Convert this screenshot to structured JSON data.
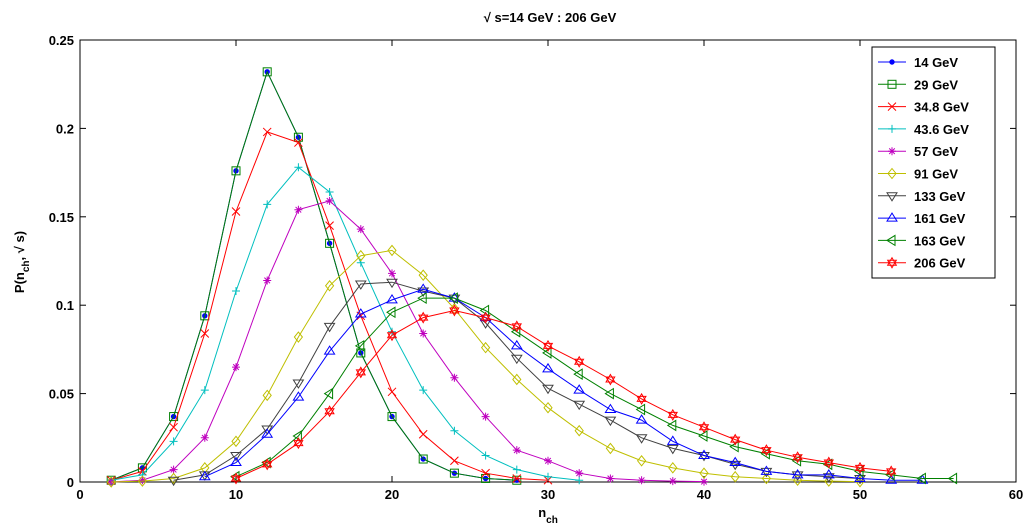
{
  "chart_data": {
    "type": "line",
    "title": "√ s=14 GeV : 206 GeV",
    "xlabel_main": "n",
    "xlabel_sub": "ch",
    "ylabel_main": "P(n",
    "ylabel_sub": "ch",
    "ylabel_rest": ", √ s)",
    "xlim": [
      0,
      60
    ],
    "ylim": [
      0,
      0.25
    ],
    "xticks": [
      0,
      10,
      20,
      30,
      40,
      50,
      60
    ],
    "yticks": [
      0,
      0.05,
      0.1,
      0.15,
      0.2,
      0.25
    ],
    "xtick_labels": [
      "0",
      "10",
      "20",
      "30",
      "40",
      "50",
      "60"
    ],
    "ytick_labels": [
      "0",
      "0.05",
      "0.1",
      "0.15",
      "0.2",
      "0.25"
    ],
    "grid": false,
    "legend_position": "top-right",
    "series": [
      {
        "name": "14 GeV",
        "color": "#0000ff",
        "marker": "dot",
        "x": [
          2,
          4,
          6,
          8,
          10,
          12,
          14,
          16,
          18,
          20,
          22,
          24,
          26,
          28
        ],
        "y": [
          0.001,
          0.008,
          0.037,
          0.094,
          0.176,
          0.232,
          0.195,
          0.135,
          0.073,
          0.037,
          0.013,
          0.005,
          0.002,
          0.001
        ]
      },
      {
        "name": "29 GeV",
        "color": "#008000",
        "marker": "square",
        "x": [
          2,
          4,
          6,
          8,
          10,
          12,
          14,
          16,
          18,
          20,
          22,
          24,
          26,
          28
        ],
        "y": [
          0.001,
          0.008,
          0.037,
          0.094,
          0.176,
          0.232,
          0.195,
          0.135,
          0.073,
          0.037,
          0.013,
          0.005,
          0.002,
          0.001
        ]
      },
      {
        "name": "34.8 GeV",
        "color": "#ff0000",
        "marker": "x",
        "x": [
          2,
          4,
          6,
          8,
          10,
          12,
          14,
          16,
          18,
          20,
          22,
          24,
          26,
          28,
          30
        ],
        "y": [
          0.001,
          0.006,
          0.031,
          0.084,
          0.153,
          0.198,
          0.192,
          0.145,
          0.094,
          0.051,
          0.027,
          0.012,
          0.005,
          0.002,
          0.001
        ]
      },
      {
        "name": "43.6 GeV",
        "color": "#00bfbf",
        "marker": "plus",
        "x": [
          2,
          4,
          6,
          8,
          10,
          12,
          14,
          16,
          18,
          20,
          22,
          24,
          26,
          28,
          30,
          32
        ],
        "y": [
          0.001,
          0.004,
          0.023,
          0.052,
          0.108,
          0.157,
          0.178,
          0.164,
          0.124,
          0.085,
          0.052,
          0.029,
          0.015,
          0.007,
          0.003,
          0.001
        ]
      },
      {
        "name": "57 GeV",
        "color": "#bf00bf",
        "marker": "star",
        "x": [
          2,
          4,
          6,
          8,
          10,
          12,
          14,
          16,
          18,
          20,
          22,
          24,
          26,
          28,
          30,
          32,
          34,
          36,
          38,
          40
        ],
        "y": [
          0.0,
          0.001,
          0.007,
          0.025,
          0.065,
          0.114,
          0.154,
          0.159,
          0.143,
          0.118,
          0.084,
          0.059,
          0.037,
          0.018,
          0.012,
          0.005,
          0.002,
          0.001,
          0.0005,
          0.0002
        ]
      },
      {
        "name": "91 GeV",
        "color": "#bfbf00",
        "marker": "diamond",
        "x": [
          2,
          4,
          6,
          8,
          10,
          12,
          14,
          16,
          18,
          20,
          22,
          24,
          26,
          28,
          30,
          32,
          34,
          36,
          38,
          40,
          42,
          44,
          46,
          48,
          50
        ],
        "y": [
          0.0,
          0.0005,
          0.002,
          0.008,
          0.023,
          0.049,
          0.082,
          0.111,
          0.128,
          0.131,
          0.117,
          0.098,
          0.076,
          0.058,
          0.042,
          0.029,
          0.019,
          0.012,
          0.008,
          0.005,
          0.003,
          0.002,
          0.001,
          0.0005,
          0.0002
        ]
      },
      {
        "name": "133 GeV",
        "color": "#404040",
        "marker": "triangle-down",
        "x": [
          6,
          8,
          10,
          12,
          14,
          16,
          18,
          20,
          22,
          24,
          26,
          28,
          30,
          32,
          34,
          36,
          38,
          40,
          42,
          44,
          46,
          48,
          50
        ],
        "y": [
          0.001,
          0.004,
          0.015,
          0.03,
          0.056,
          0.088,
          0.112,
          0.113,
          0.108,
          0.104,
          0.09,
          0.07,
          0.053,
          0.044,
          0.035,
          0.025,
          0.019,
          0.015,
          0.01,
          0.006,
          0.004,
          0.003,
          0.002
        ]
      },
      {
        "name": "161 GeV",
        "color": "#0000ff",
        "marker": "triangle-up",
        "x": [
          8,
          10,
          12,
          14,
          16,
          18,
          20,
          22,
          24,
          26,
          28,
          30,
          32,
          34,
          36,
          38,
          40,
          42,
          44,
          46,
          48,
          50,
          52,
          54
        ],
        "y": [
          0.003,
          0.011,
          0.027,
          0.048,
          0.074,
          0.095,
          0.103,
          0.109,
          0.104,
          0.093,
          0.077,
          0.064,
          0.052,
          0.041,
          0.035,
          0.023,
          0.015,
          0.011,
          0.006,
          0.004,
          0.004,
          0.002,
          0.001,
          0.001
        ]
      },
      {
        "name": "163 GeV",
        "color": "#008000",
        "marker": "triangle-left",
        "x": [
          10,
          12,
          14,
          16,
          18,
          20,
          22,
          24,
          26,
          28,
          30,
          32,
          34,
          36,
          38,
          40,
          42,
          44,
          46,
          48,
          50,
          52,
          54,
          56
        ],
        "y": [
          0.003,
          0.011,
          0.026,
          0.05,
          0.077,
          0.096,
          0.104,
          0.104,
          0.097,
          0.085,
          0.073,
          0.061,
          0.05,
          0.041,
          0.032,
          0.026,
          0.02,
          0.016,
          0.012,
          0.01,
          0.006,
          0.004,
          0.002,
          0.002
        ]
      },
      {
        "name": "206 GeV",
        "color": "#ff0000",
        "marker": "hexagram",
        "x": [
          10,
          12,
          14,
          16,
          18,
          20,
          22,
          24,
          26,
          28,
          30,
          32,
          34,
          36,
          38,
          40,
          42,
          44,
          46,
          48,
          50,
          52
        ],
        "y": [
          0.002,
          0.01,
          0.022,
          0.04,
          0.062,
          0.083,
          0.093,
          0.097,
          0.093,
          0.088,
          0.077,
          0.068,
          0.058,
          0.047,
          0.038,
          0.031,
          0.024,
          0.018,
          0.014,
          0.011,
          0.008,
          0.006
        ]
      }
    ]
  }
}
